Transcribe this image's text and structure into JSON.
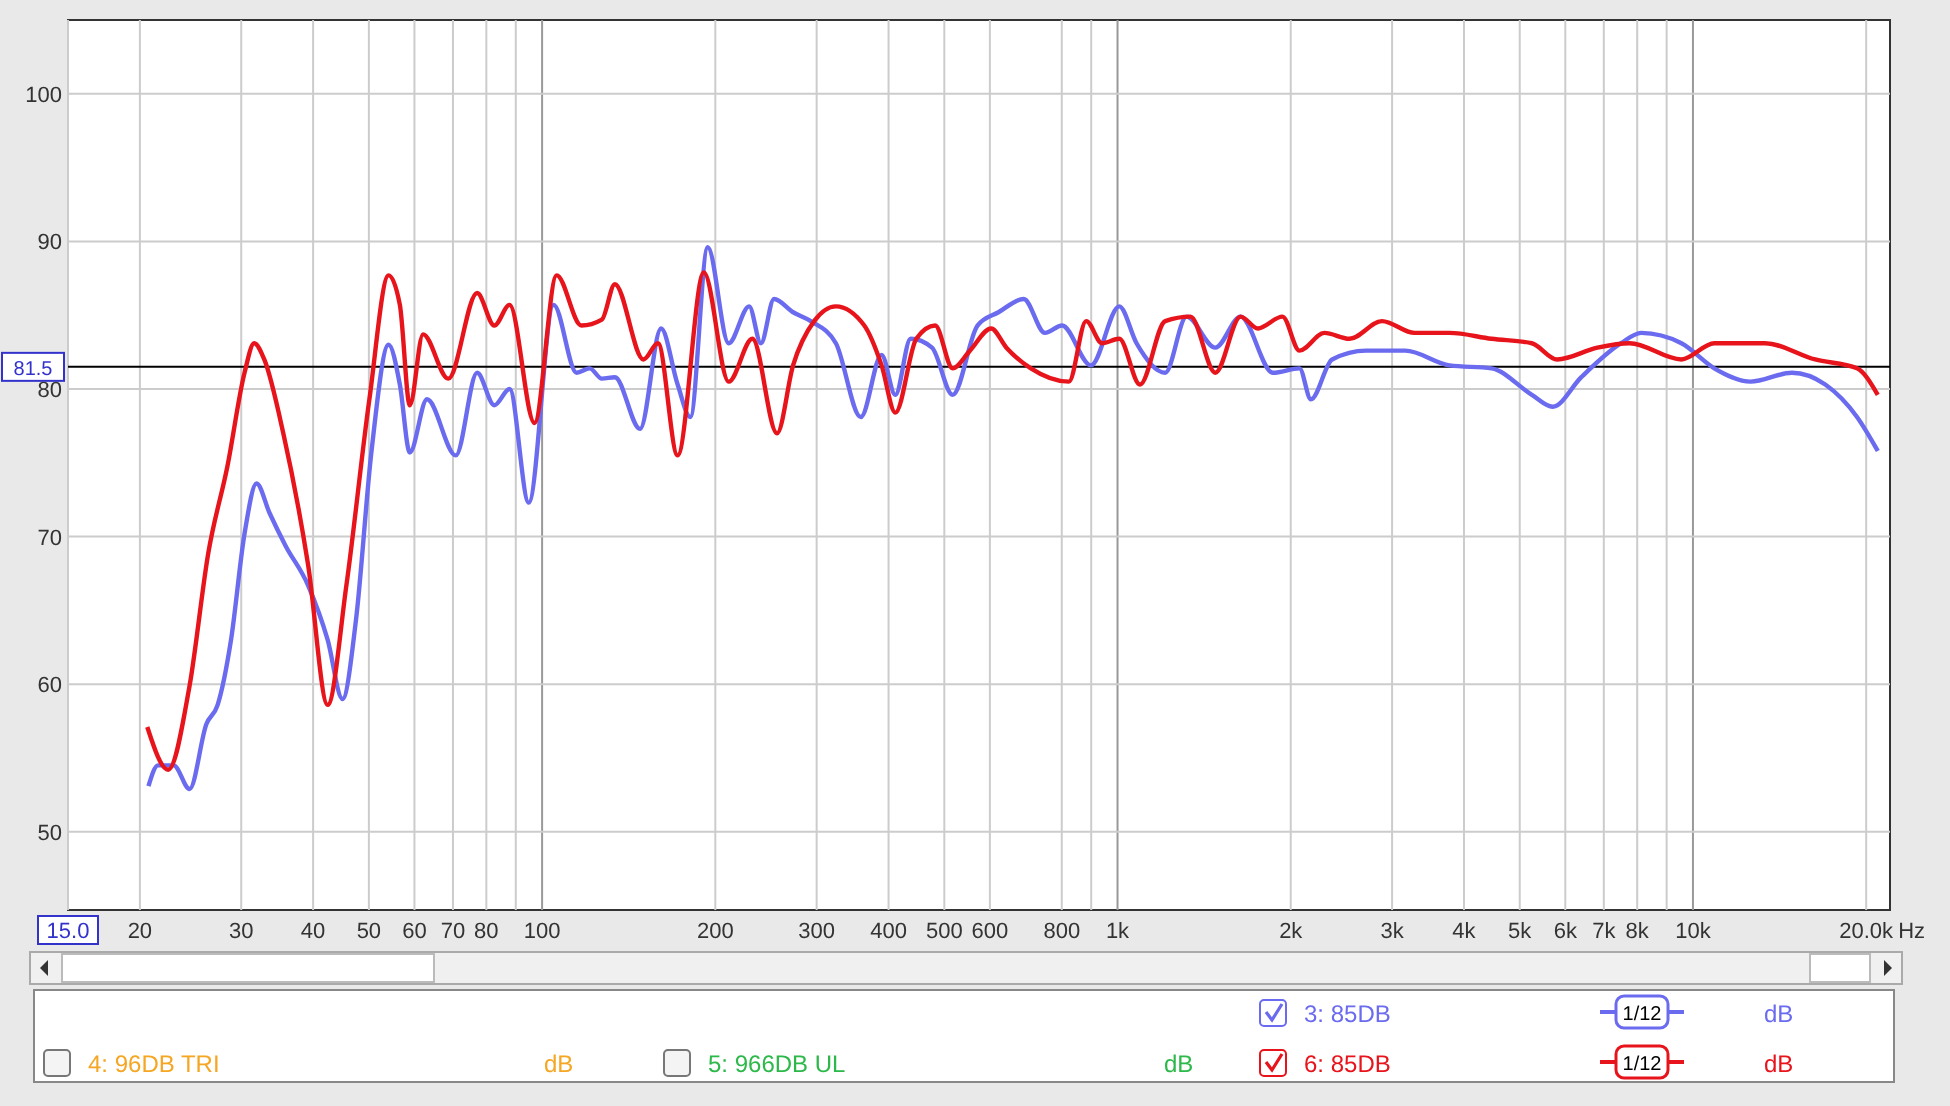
{
  "chart_data": {
    "type": "line",
    "xlim": [
      15,
      22000
    ],
    "ylim": [
      44.7,
      105
    ],
    "log": "x",
    "grid": true,
    "legend": "bottom",
    "line_style": "solid",
    "marker": "none",
    "xticks": [
      {
        "value": 15,
        "label": "15.0"
      },
      20,
      30,
      40,
      50,
      60,
      70,
      80,
      {
        "value": 90,
        "label": null
      },
      100,
      200,
      300,
      400,
      500,
      600,
      800,
      {
        "value": 900,
        "label": null
      },
      {
        "value": 1000,
        "label": "1k"
      },
      {
        "value": 2000,
        "label": "2k"
      },
      {
        "value": 3000,
        "label": "3k"
      },
      {
        "value": 4000,
        "label": "4k"
      },
      {
        "value": 5000,
        "label": "5k"
      },
      {
        "value": 6000,
        "label": "6k"
      },
      {
        "value": 7000,
        "label": "7k"
      },
      {
        "value": 8000,
        "label": "8k"
      },
      {
        "value": 9000,
        "label": null
      },
      {
        "value": 10000,
        "label": "10k"
      },
      {
        "value": 20000,
        "label": "20.0k"
      }
    ],
    "xlabel": "Hz",
    "yticks": [
      50,
      60,
      70,
      80,
      90,
      100
    ],
    "ref_lines": [
      {
        "axis": "y",
        "value": 81.5,
        "label": "81.5",
        "color": "#000000"
      }
    ],
    "annotations": [
      "4: 96DB TRI",
      "5: 966DB UL",
      "dB",
      "1/12"
    ],
    "series": [
      {
        "name": "3: 85DB",
        "color": "#6b6bf0",
        "x": [
          20.7,
          21.5,
          22.9,
          24.4,
          26.1,
          27.3,
          28.8,
          30.4,
          31.9,
          33.6,
          35.8,
          39.2,
          42.4,
          45,
          47.5,
          50.5,
          54.1,
          56.6,
          58.9,
          63.1,
          70.8,
          77.1,
          82.6,
          87.8,
          94.8,
          104.7,
          114.8,
          121,
          127,
          133.8,
          148,
          161,
          172,
          181,
          194,
          211,
          229,
          240,
          253,
          273,
          293,
          324,
          358,
          389,
          411,
          437,
          476,
          517,
          571,
          621,
          687,
          748,
          801,
          899,
          1007,
          1079,
          1210,
          1318,
          1479,
          1636,
          1862,
          2071,
          2168,
          2360,
          2704,
          3162,
          3775,
          4467,
          5248,
          5704,
          6397,
          7499,
          8128,
          9550,
          10890,
          12590,
          14860,
          16980,
          19280,
          20950
        ],
        "values": [
          53.1,
          54.5,
          54.5,
          52.9,
          57.3,
          58.6,
          63,
          70.2,
          73.6,
          71.6,
          69.4,
          66.7,
          63,
          59,
          64.4,
          75.7,
          83,
          80.3,
          75.7,
          79.3,
          75.5,
          81.1,
          78.9,
          80,
          72.3,
          85.7,
          81.1,
          81.4,
          80.7,
          80.8,
          77.3,
          84.1,
          80.3,
          78.1,
          89.6,
          83.1,
          85.6,
          83.1,
          86.1,
          85.2,
          84.6,
          83.1,
          78.1,
          82.3,
          79.6,
          83.4,
          82.8,
          79.6,
          84.3,
          85.2,
          86.1,
          83.8,
          84.3,
          81.6,
          85.6,
          83.1,
          81.1,
          84.9,
          82.8,
          84.9,
          81.1,
          81.4,
          79.3,
          82,
          82.6,
          82.6,
          81.6,
          81.4,
          79.6,
          78.8,
          80.8,
          83.1,
          83.8,
          83.1,
          81.4,
          80.5,
          81.1,
          80.3,
          78.1,
          75.8
        ]
      },
      {
        "name": "6: 85DB",
        "color": "#e8141c",
        "x": [
          20.6,
          22.4,
          24.4,
          26.3,
          28.4,
          30.4,
          31.6,
          32.9,
          35.5,
          39.2,
          42.4,
          45.7,
          50.1,
          54.1,
          56.6,
          58.9,
          62.1,
          68.7,
          77.1,
          82.6,
          87.8,
          97,
          106,
          117,
          127,
          133.8,
          150,
          159,
          172,
          191,
          211,
          232,
          256,
          273,
          297,
          324,
          363,
          389,
          411,
          447,
          482,
          517,
          554,
          603,
          641,
          707,
          823,
          882,
          940,
          1007,
          1094,
          1210,
          1339,
          1479,
          1636,
          1753,
          1935,
          2071,
          2288,
          2529,
          2881,
          3282,
          3775,
          4467,
          5248,
          5808,
          6823,
          7762,
          9550,
          10890,
          13340,
          16310,
          19280,
          20950
        ],
        "values": [
          57.1,
          54.2,
          59.9,
          68.9,
          74.8,
          81.1,
          83.1,
          82,
          77,
          68.1,
          58.6,
          66.7,
          79.3,
          87.7,
          85.7,
          78.9,
          83.7,
          80.7,
          86.5,
          84.3,
          85.7,
          77.7,
          87.7,
          84.3,
          84.7,
          87.1,
          82,
          83.1,
          75.5,
          87.9,
          80.5,
          83.4,
          77,
          81.6,
          84.6,
          85.6,
          84.3,
          81.6,
          78.4,
          83.4,
          84.3,
          81.4,
          82.6,
          84.1,
          82.8,
          81.4,
          80.5,
          84.6,
          83.1,
          83.4,
          80.3,
          84.6,
          84.9,
          81.1,
          84.9,
          84.1,
          84.9,
          82.6,
          83.8,
          83.4,
          84.6,
          83.8,
          83.8,
          83.4,
          83.1,
          82,
          82.8,
          83.1,
          82,
          83.1,
          83.1,
          82,
          81.4,
          79.6
        ]
      }
    ]
  }
}
